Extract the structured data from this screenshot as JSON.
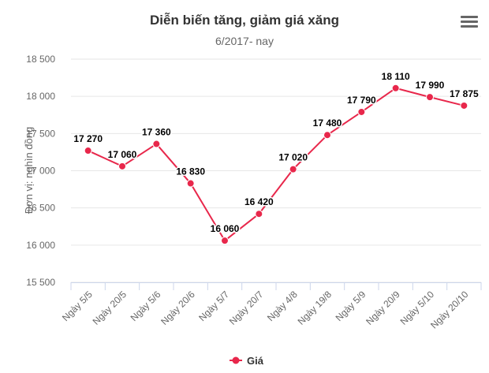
{
  "menu_icon": "hamburger-menu-icon",
  "chart_data": {
    "type": "line",
    "title": "Diễn biến tăng, giảm giá xăng",
    "subtitle": "6/2017- nay",
    "ylabel": "Đơn vị: nghìn đồng",
    "xlabel": "",
    "categories": [
      "Ngày 5/5",
      "Ngày 20/5",
      "Ngày 5/6",
      "Ngày 20/6",
      "Ngày 5/7",
      "Ngày 20/7",
      "Ngày 4/8",
      "Ngày 19/8",
      "Ngày 5/9",
      "Ngày 20/9",
      "Ngày 5/10",
      "Ngày 20/10"
    ],
    "ylim": [
      15500,
      18500
    ],
    "yticks": [
      15500,
      16000,
      16500,
      17000,
      17500,
      18000,
      18500
    ],
    "ytick_labels": [
      "15 500",
      "16 000",
      "16 500",
      "17 000",
      "17 500",
      "18 000",
      "18 500"
    ],
    "grid": true,
    "legend": "bottom-center",
    "series": [
      {
        "name": "Giá",
        "color": "#e8274b",
        "values": [
          17270,
          17060,
          17360,
          16830,
          16060,
          16420,
          17020,
          17480,
          17790,
          18110,
          17990,
          17875
        ],
        "labels": [
          "17 270",
          "17 060",
          "17 360",
          "16 830",
          "16 060",
          "16 420",
          "17 020",
          "17 480",
          "17 790",
          "18 110",
          "17 990",
          "17 875"
        ]
      }
    ]
  }
}
